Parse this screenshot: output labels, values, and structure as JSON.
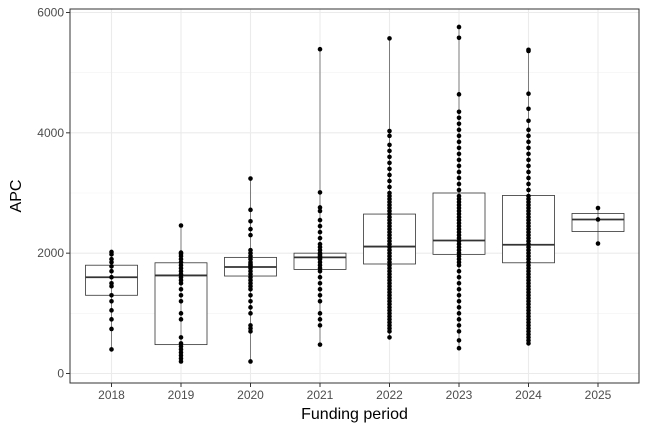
{
  "chart_data": {
    "type": "box",
    "xlabel": "Funding period",
    "ylabel": "APC",
    "categories": [
      "2018",
      "2019",
      "2020",
      "2021",
      "2022",
      "2023",
      "2024",
      "2025"
    ],
    "ylim": [
      -300,
      6000
    ],
    "yticks": [
      0,
      2000,
      4000,
      6000
    ],
    "grid": true,
    "boxes": [
      {
        "category": "2018",
        "q1": 1300,
        "median": 1600,
        "q3": 1800
      },
      {
        "category": "2019",
        "q1": 480,
        "median": 1630,
        "q3": 1840
      },
      {
        "category": "2020",
        "q1": 1620,
        "median": 1770,
        "q3": 1930
      },
      {
        "category": "2021",
        "q1": 1730,
        "median": 1930,
        "q3": 2000
      },
      {
        "category": "2022",
        "q1": 1820,
        "median": 2110,
        "q3": 2650
      },
      {
        "category": "2023",
        "q1": 1980,
        "median": 2210,
        "q3": 3000
      },
      {
        "category": "2024",
        "q1": 1840,
        "median": 2140,
        "q3": 2960
      },
      {
        "category": "2025",
        "q1": 2360,
        "median": 2560,
        "q3": 2660
      }
    ],
    "points": [
      {
        "category": "2018",
        "values": [
          2020,
          1980,
          1900,
          1850,
          1780,
          1700,
          1600,
          1500,
          1450,
          1300,
          1200,
          1050,
          900,
          740,
          400
        ]
      },
      {
        "category": "2019",
        "values": [
          2460,
          2010,
          1990,
          1950,
          1900,
          1850,
          1800,
          1750,
          1700,
          1650,
          1600,
          1550,
          1500,
          1400,
          1300,
          1200,
          1000,
          900,
          600,
          500,
          450,
          400,
          350,
          300,
          250,
          200
        ]
      },
      {
        "category": "2020",
        "values": [
          3240,
          2720,
          2530,
          2400,
          2300,
          2050,
          2000,
          1950,
          1900,
          1850,
          1820,
          1800,
          1780,
          1750,
          1700,
          1650,
          1600,
          1550,
          1500,
          1450,
          1400,
          1300,
          1200,
          1100,
          1000,
          800,
          750,
          700,
          200
        ]
      },
      {
        "category": "2021",
        "values": [
          5390,
          3010,
          2760,
          2700,
          2550,
          2450,
          2350,
          2250,
          2150,
          2100,
          2050,
          2000,
          1980,
          1950,
          1920,
          1900,
          1850,
          1800,
          1750,
          1700,
          1600,
          1500,
          1400,
          1300,
          1200,
          1000,
          900,
          800,
          480
        ]
      },
      {
        "category": "2022",
        "values": [
          5570,
          4030,
          3950,
          3800,
          3700,
          3600,
          3500,
          3400,
          3300,
          3200,
          3100,
          3000,
          2950,
          2900,
          2850,
          2800,
          2750,
          2700,
          2650,
          2600,
          2550,
          2500,
          2450,
          2400,
          2350,
          2300,
          2250,
          2200,
          2150,
          2100,
          2050,
          2000,
          1950,
          1900,
          1850,
          1800,
          1750,
          1700,
          1650,
          1600,
          1550,
          1500,
          1450,
          1400,
          1350,
          1300,
          1250,
          1200,
          1150,
          1100,
          1050,
          1000,
          950,
          900,
          850,
          800,
          750,
          700,
          600
        ]
      },
      {
        "category": "2023",
        "values": [
          5760,
          5580,
          4640,
          4350,
          4250,
          4150,
          4050,
          3950,
          3850,
          3750,
          3650,
          3550,
          3450,
          3350,
          3250,
          3150,
          3050,
          2950,
          2900,
          2850,
          2800,
          2750,
          2700,
          2650,
          2600,
          2550,
          2500,
          2450,
          2400,
          2350,
          2300,
          2250,
          2200,
          2150,
          2100,
          2050,
          2000,
          1950,
          1900,
          1850,
          1800,
          1700,
          1600,
          1500,
          1400,
          1300,
          1200,
          1100,
          1000,
          900,
          800,
          700,
          550,
          420
        ]
      },
      {
        "category": "2024",
        "values": [
          5380,
          5360,
          4650,
          4400,
          4200,
          4050,
          3950,
          3850,
          3750,
          3650,
          3550,
          3450,
          3350,
          3250,
          3150,
          3050,
          2950,
          2900,
          2850,
          2800,
          2750,
          2700,
          2650,
          2600,
          2550,
          2500,
          2450,
          2400,
          2350,
          2300,
          2250,
          2200,
          2150,
          2100,
          2050,
          2000,
          1950,
          1900,
          1850,
          1800,
          1750,
          1700,
          1650,
          1600,
          1550,
          1500,
          1450,
          1400,
          1350,
          1300,
          1250,
          1200,
          1150,
          1100,
          1050,
          1000,
          950,
          900,
          850,
          800,
          750,
          700,
          650,
          600,
          550,
          500
        ]
      },
      {
        "category": "2025",
        "values": [
          2750,
          2560,
          2160
        ]
      }
    ]
  }
}
